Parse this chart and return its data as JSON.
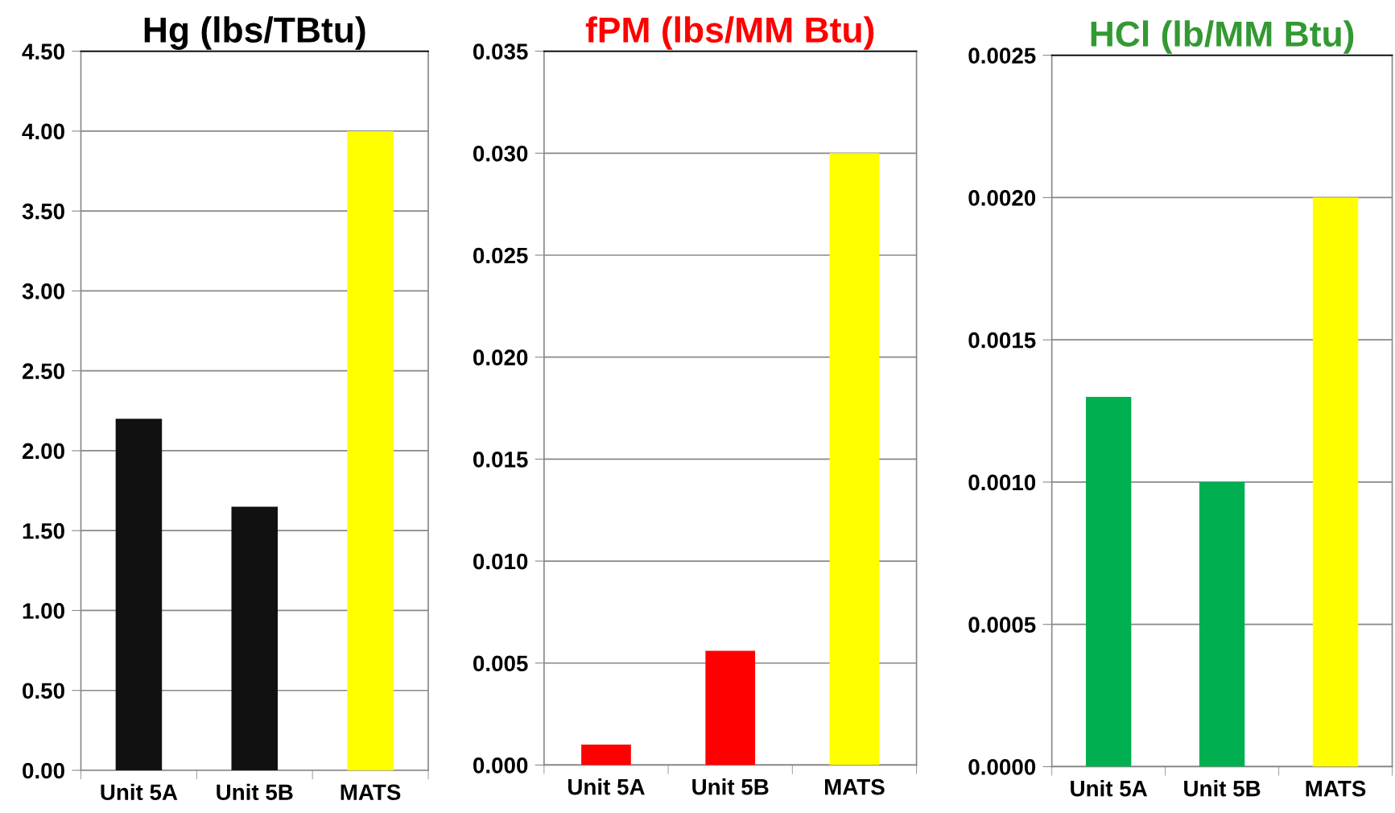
{
  "chart_data": [
    {
      "type": "bar",
      "title": "Hg (lbs/TBtu)",
      "categories": [
        "Unit 5A",
        "Unit 5B",
        "MATS"
      ],
      "values": [
        2.2,
        1.65,
        4.0
      ],
      "colors": [
        "#111111",
        "#111111",
        "#ffff00"
      ],
      "ylim": [
        0,
        4.5
      ],
      "yticks": [
        {
          "value": 0,
          "label": "0.00"
        },
        {
          "value": 0.5,
          "label": "0.50"
        },
        {
          "value": 1,
          "label": "1.00"
        },
        {
          "value": 1.5,
          "label": "1.50"
        },
        {
          "value": 2,
          "label": "2.00"
        },
        {
          "value": 2.5,
          "label": "2.50"
        },
        {
          "value": 3,
          "label": "3.00"
        },
        {
          "value": 3.5,
          "label": "3.50"
        },
        {
          "value": 4,
          "label": "4.00"
        },
        {
          "value": 4.5,
          "label": "4.50"
        }
      ],
      "grid": "y"
    },
    {
      "type": "bar",
      "title": "fPM (lbs/MM Btu)",
      "categories": [
        "Unit 5A",
        "Unit 5B",
        "MATS"
      ],
      "values": [
        0.001,
        0.0056,
        0.03
      ],
      "colors": [
        "#ff0000",
        "#ff0000",
        "#ffff00"
      ],
      "ylim": [
        0,
        0.035
      ],
      "yticks": [
        {
          "value": 0,
          "label": "0.000"
        },
        {
          "value": 0.005,
          "label": "0.005"
        },
        {
          "value": 0.01,
          "label": "0.010"
        },
        {
          "value": 0.015,
          "label": "0.015"
        },
        {
          "value": 0.02,
          "label": "0.020"
        },
        {
          "value": 0.025,
          "label": "0.025"
        },
        {
          "value": 0.03,
          "label": "0.030"
        },
        {
          "value": 0.035,
          "label": "0.035"
        }
      ],
      "grid": "y"
    },
    {
      "type": "bar",
      "title": "HCl (lb/MM Btu)",
      "categories": [
        "Unit 5A",
        "Unit 5B",
        "MATS"
      ],
      "values": [
        0.0013,
        0.001,
        0.002
      ],
      "colors": [
        "#00b050",
        "#00b050",
        "#ffff00"
      ],
      "ylim": [
        0,
        0.0025
      ],
      "yticks": [
        {
          "value": 0,
          "label": "0.0000"
        },
        {
          "value": 0.0005,
          "label": "0.0005"
        },
        {
          "value": 0.001,
          "label": "0.0010"
        },
        {
          "value": 0.0015,
          "label": "0.0015"
        },
        {
          "value": 0.002,
          "label": "0.0020"
        },
        {
          "value": 0.0025,
          "label": "0.0025"
        }
      ],
      "grid": "y"
    }
  ]
}
